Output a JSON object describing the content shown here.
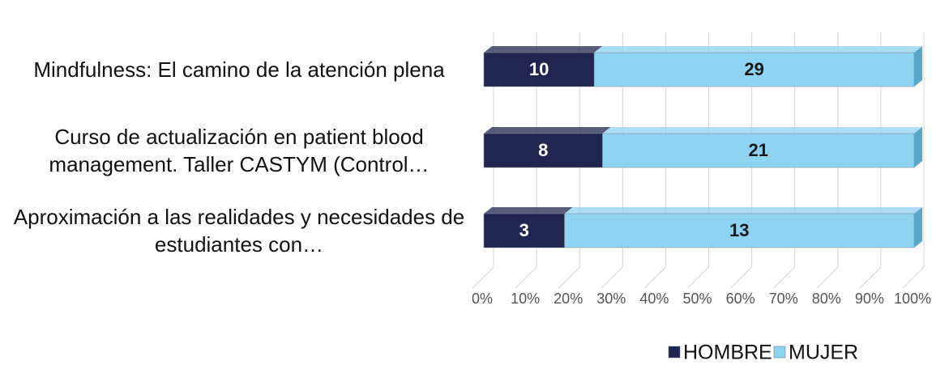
{
  "chart_data": {
    "type": "bar",
    "orientation": "horizontal",
    "stacking": "percent",
    "categories": [
      "Mindfulness: El camino de la atención plena",
      "Curso de actualización en patient blood management. Taller CASTYM (Control…",
      "Aproximación a las realidades y necesidades de estudiantes con…"
    ],
    "series": [
      {
        "name": "HOMBRE",
        "color": "#1f2650",
        "values": [
          10,
          8,
          3
        ]
      },
      {
        "name": "MUJER",
        "color": "#8fd3f2",
        "values": [
          29,
          21,
          13
        ]
      }
    ],
    "xlim": [
      0,
      100
    ],
    "xticks": [
      {
        "value": 0,
        "label": "0%"
      },
      {
        "value": 10,
        "label": "10%"
      },
      {
        "value": 20,
        "label": "20%"
      },
      {
        "value": 30,
        "label": "30%"
      },
      {
        "value": 40,
        "label": "40%"
      },
      {
        "value": 50,
        "label": "50%"
      },
      {
        "value": 60,
        "label": "60%"
      },
      {
        "value": 70,
        "label": "70%"
      },
      {
        "value": 80,
        "label": "80%"
      },
      {
        "value": 90,
        "label": "90%"
      },
      {
        "value": 100,
        "label": "100%"
      }
    ],
    "grid": true,
    "legend": "bottom"
  }
}
